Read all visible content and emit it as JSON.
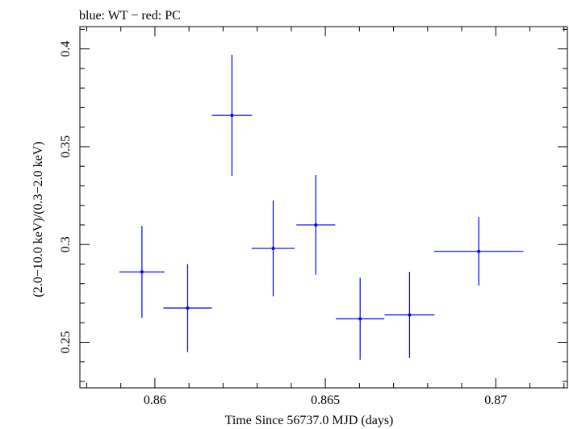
{
  "chart_data": {
    "type": "scatter",
    "title": "blue: WT − red: PC",
    "xlabel": "Time Since 56737.0 MJD (days)",
    "ylabel": "(2.0−10.0 keV)/(0.3−2.0 keV)",
    "xlim": [
      0.8578,
      0.8721
    ],
    "ylim": [
      0.2267,
      0.4114
    ],
    "xticks": [
      {
        "value": 0.86,
        "label": "0.86"
      },
      {
        "value": 0.865,
        "label": "0.865"
      },
      {
        "value": 0.87,
        "label": "0.87"
      }
    ],
    "yticks": [
      {
        "value": 0.25,
        "label": "0.25"
      },
      {
        "value": 0.3,
        "label": "0.3"
      },
      {
        "value": 0.35,
        "label": "0.35"
      },
      {
        "value": 0.4,
        "label": "0.4"
      }
    ],
    "xminor_step": 0.001,
    "yminor_step": 0.01,
    "grid": false,
    "series": [
      {
        "color": "#0000ff",
        "points": [
          {
            "x": 0.85962,
            "xerr": 0.00066,
            "y": 0.286,
            "yerr_low": 0.0235,
            "yerr_high": 0.0235
          },
          {
            "x": 0.86096,
            "xerr": 0.00071,
            "y": 0.2675,
            "yerr_low": 0.0225,
            "yerr_high": 0.0225
          },
          {
            "x": 0.86226,
            "xerr": 0.00059,
            "y": 0.366,
            "yerr_low": 0.031,
            "yerr_high": 0.031
          },
          {
            "x": 0.86347,
            "xerr": 0.00063,
            "y": 0.298,
            "yerr_low": 0.0245,
            "yerr_high": 0.0245
          },
          {
            "x": 0.86472,
            "xerr": 0.00057,
            "y": 0.31,
            "yerr_low": 0.0255,
            "yerr_high": 0.0255
          },
          {
            "x": 0.86602,
            "xerr": 0.00071,
            "y": 0.262,
            "yerr_low": 0.021,
            "yerr_high": 0.021
          },
          {
            "x": 0.86747,
            "xerr": 0.00073,
            "y": 0.264,
            "yerr_low": 0.022,
            "yerr_high": 0.022
          },
          {
            "x": 0.8695,
            "xerr": 0.00131,
            "y": 0.2965,
            "yerr_low": 0.0175,
            "yerr_high": 0.0175
          }
        ]
      }
    ]
  }
}
